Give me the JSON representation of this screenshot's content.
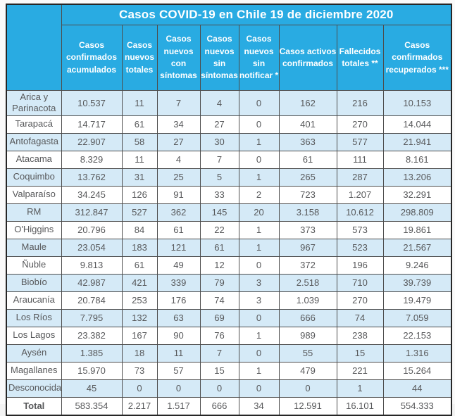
{
  "colors": {
    "accent_blue": "#29abe2",
    "row_alt_blue": "#d5eaf7",
    "row_white": "#ffffff",
    "grid_border": "#4d4d4d",
    "outer_border": "#262626",
    "header_text": "#ffffff",
    "data_text": "#57585a"
  },
  "chart_data": {
    "type": "table",
    "title": "Casos COVID-19 en Chile 19 de diciembre 2020",
    "region_column_header": "",
    "columns": [
      "Casos confirmados acumulados",
      "Casos nuevos totales",
      "Casos nuevos con síntomas",
      "Casos nuevos sin síntomas",
      "Casos nuevos sin notificar *",
      "Casos activos confirmados",
      "Fallecidos totales **",
      "Casos confirmados recuperados ***"
    ],
    "rows": [
      {
        "region": "Arica y Parinacota",
        "values": [
          "10.537",
          "11",
          "7",
          "4",
          "0",
          "162",
          "216",
          "10.153"
        ]
      },
      {
        "region": "Tarapacá",
        "values": [
          "14.717",
          "61",
          "34",
          "27",
          "0",
          "401",
          "270",
          "14.044"
        ]
      },
      {
        "region": "Antofagasta",
        "values": [
          "22.907",
          "58",
          "27",
          "30",
          "1",
          "363",
          "577",
          "21.941"
        ]
      },
      {
        "region": "Atacama",
        "values": [
          "8.329",
          "11",
          "4",
          "7",
          "0",
          "61",
          "111",
          "8.161"
        ]
      },
      {
        "region": "Coquimbo",
        "values": [
          "13.762",
          "31",
          "25",
          "5",
          "1",
          "265",
          "287",
          "13.206"
        ]
      },
      {
        "region": "Valparaíso",
        "values": [
          "34.245",
          "126",
          "91",
          "33",
          "2",
          "723",
          "1.207",
          "32.291"
        ]
      },
      {
        "region": "RM",
        "values": [
          "312.847",
          "527",
          "362",
          "145",
          "20",
          "3.158",
          "10.612",
          "298.809"
        ]
      },
      {
        "region": "O'Higgins",
        "values": [
          "20.796",
          "84",
          "61",
          "22",
          "1",
          "373",
          "573",
          "19.861"
        ]
      },
      {
        "region": "Maule",
        "values": [
          "23.054",
          "183",
          "121",
          "61",
          "1",
          "967",
          "523",
          "21.567"
        ]
      },
      {
        "region": "Ñuble",
        "values": [
          "9.813",
          "61",
          "49",
          "12",
          "0",
          "372",
          "196",
          "9.246"
        ]
      },
      {
        "region": "Biobío",
        "values": [
          "42.987",
          "421",
          "339",
          "79",
          "3",
          "2.518",
          "710",
          "39.739"
        ]
      },
      {
        "region": "Araucanía",
        "values": [
          "20.784",
          "253",
          "176",
          "74",
          "3",
          "1.039",
          "270",
          "19.479"
        ]
      },
      {
        "region": "Los Ríos",
        "values": [
          "7.795",
          "132",
          "63",
          "69",
          "0",
          "666",
          "74",
          "7.059"
        ]
      },
      {
        "region": "Los Lagos",
        "values": [
          "23.382",
          "167",
          "90",
          "76",
          "1",
          "989",
          "238",
          "22.153"
        ]
      },
      {
        "region": "Aysén",
        "values": [
          "1.385",
          "18",
          "11",
          "7",
          "0",
          "55",
          "15",
          "1.316"
        ]
      },
      {
        "region": "Magallanes",
        "values": [
          "15.970",
          "73",
          "57",
          "15",
          "1",
          "479",
          "221",
          "15.264"
        ]
      },
      {
        "region": "Desconocida",
        "values": [
          "45",
          "0",
          "0",
          "0",
          "0",
          "0",
          "1",
          "44"
        ]
      }
    ],
    "total_row": {
      "label": "Total",
      "values": [
        "583.354",
        "2.217",
        "1.517",
        "666",
        "34",
        "12.591",
        "16.101",
        "554.333"
      ]
    }
  }
}
